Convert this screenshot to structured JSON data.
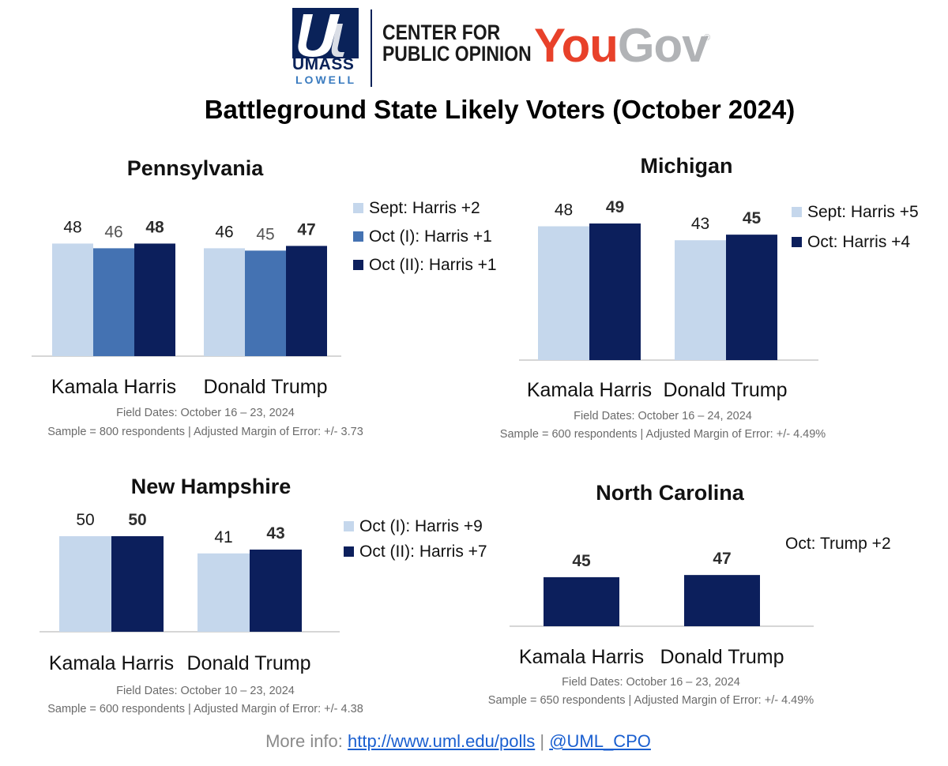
{
  "header": {
    "umass_text": "UMASS",
    "lowell_text": "LOWELL",
    "center_line1": "CENTER FOR",
    "center_line2": "PUBLIC OPINION",
    "yougov_you": "You",
    "yougov_gov": "Gov",
    "yougov_reg": "®"
  },
  "title": "Battleground State Likely Voters (October 2024)",
  "colors": {
    "light": "#c5d7ec",
    "mid": "#4472b2",
    "dark": "#0c1f5c",
    "axis": "#c8c8c8",
    "value_light": "#1a1a1a",
    "value_mid": "#555555",
    "value_dark": "#2e2e2e"
  },
  "chart_data": [
    {
      "type": "bar",
      "title": "Pennsylvania",
      "categories": [
        "Kamala Harris",
        "Donald Trump"
      ],
      "series": [
        {
          "name": "Sept: Harris +2",
          "values": [
            48,
            46
          ],
          "color": "light"
        },
        {
          "name": "Oct (I): Harris +1",
          "values": [
            46,
            45
          ],
          "color": "mid"
        },
        {
          "name": "Oct (II): Harris +1",
          "values": [
            48,
            47
          ],
          "color": "dark"
        }
      ],
      "note_line1": "Field Dates: October  16 – 23, 2024",
      "note_line2": "Sample = 800 respondents | Adjusted Margin of Error: +/- 3.73",
      "legend": "right"
    },
    {
      "type": "bar",
      "title": "Michigan",
      "categories": [
        "Kamala Harris",
        "Donald Trump"
      ],
      "series": [
        {
          "name": "Sept: Harris +5",
          "values": [
            48,
            43
          ],
          "color": "light"
        },
        {
          "name": "Oct: Harris +4",
          "values": [
            49,
            45
          ],
          "color": "dark"
        }
      ],
      "note_line1": "Field Dates: October  16 – 24, 2024",
      "note_line2": "Sample = 600 respondents | Adjusted Margin of Error: +/- 4.49%",
      "legend": "right"
    },
    {
      "type": "bar",
      "title": "New Hampshire",
      "categories": [
        "Kamala Harris",
        "Donald Trump"
      ],
      "series": [
        {
          "name": "Oct (I): Harris +9",
          "values": [
            50,
            41
          ],
          "color": "light"
        },
        {
          "name": "Oct (II): Harris +7",
          "values": [
            50,
            43
          ],
          "color": "dark"
        }
      ],
      "note_line1": "Field Dates: October  10 – 23, 2024",
      "note_line2": "Sample = 600 respondents | Adjusted Margin of Error: +/- 4.38",
      "legend": "right"
    },
    {
      "type": "bar",
      "title": "North Carolina",
      "categories": [
        "Kamala Harris",
        "Donald Trump"
      ],
      "series": [
        {
          "name": "Oct: Trump +2",
          "values": [
            45,
            47
          ],
          "color": "dark"
        }
      ],
      "note_line1": "Field Dates: October 16 – 23, 2024",
      "note_line2": "Sample = 650 respondents | Adjusted Margin of Error: +/- 4.49%",
      "legend": "right"
    }
  ],
  "footer": {
    "prefix": "More info: ",
    "link1": "http://www.uml.edu/polls",
    "separator": " | ",
    "link2": "@UML_CPO"
  }
}
